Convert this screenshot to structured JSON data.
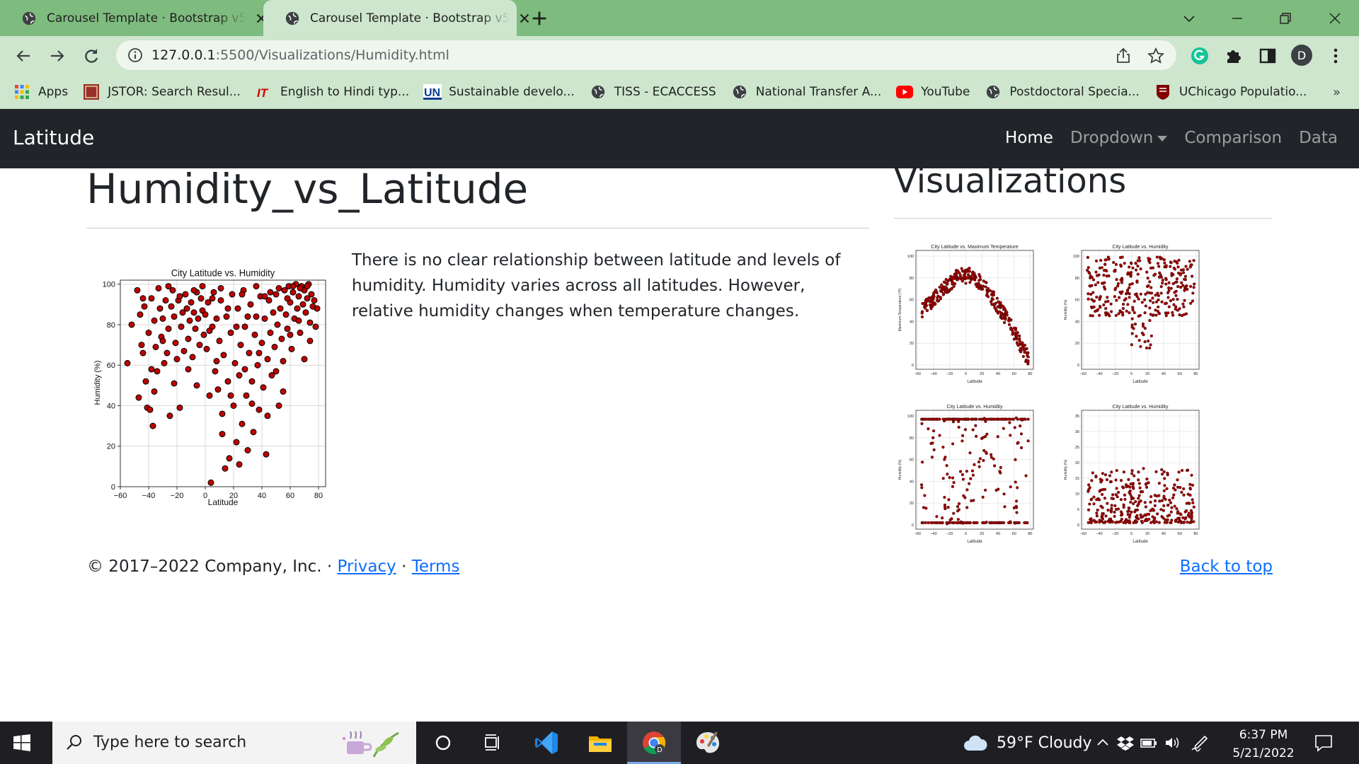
{
  "browser": {
    "tabs": [
      {
        "title": "Carousel Template · Bootstrap v5",
        "active": false
      },
      {
        "title": "Carousel Template · Bootstrap v5",
        "active": true
      }
    ],
    "url_host": "127.0.0.1",
    "url_rest": ":5500/Visualizations/Humidity.html",
    "bookmarks": [
      {
        "label": "Apps",
        "icon": "apps-grid-icon"
      },
      {
        "label": "JSTOR: Search Resul...",
        "icon": "jstor-icon"
      },
      {
        "label": "English to Hindi typ...",
        "icon": "it-logo-icon"
      },
      {
        "label": "Sustainable develo...",
        "icon": "un-logo-icon"
      },
      {
        "label": "TISS - ECACCESS",
        "icon": "globe-icon"
      },
      {
        "label": "National Transfer A...",
        "icon": "globe-icon"
      },
      {
        "label": "YouTube",
        "icon": "youtube-icon"
      },
      {
        "label": "Postdoctoral Specia...",
        "icon": "globe-icon"
      },
      {
        "label": "UChicago Populatio...",
        "icon": "uchicago-icon"
      }
    ],
    "avatar_letter": "D",
    "colors": {
      "frame": "#7ebb7e",
      "toolbar": "#cde6cd"
    }
  },
  "navbar": {
    "brand": "Latitude",
    "links": [
      {
        "label": "Home",
        "active": true
      },
      {
        "label": "Dropdown",
        "active": false,
        "dropdown": true
      },
      {
        "label": "Comparison",
        "active": false
      },
      {
        "label": "Data",
        "active": false
      }
    ]
  },
  "main": {
    "title": "Humidity_vs_Latitude",
    "description": "There is no clear relationship between latitude and levels of humidity. Humidity varies across all latitudes. However, relative humidity changes when temperature changes."
  },
  "sidebar": {
    "title": "Visualizations",
    "thumbnails": [
      {
        "title": "City Latitude vs. Maximum Temperature",
        "ylabel": "Maximum Temperature (°F)",
        "xlabel": "Latitude",
        "yticks": [
          "0",
          "20",
          "40",
          "60",
          "80",
          "100"
        ]
      },
      {
        "title": "City Latitude vs. Humidity",
        "ylabel": "Humidity (%)",
        "xlabel": "Latitude",
        "yticks": [
          "0",
          "20",
          "40",
          "60",
          "80",
          "100"
        ]
      },
      {
        "title": "City Latitude vs. Humidity",
        "ylabel": "Humidity (%)",
        "xlabel": "Latitude",
        "yticks": [
          "0",
          "20",
          "40",
          "60",
          "80",
          "100"
        ]
      },
      {
        "title": "City Latitude vs. Humidity",
        "ylabel": "Humidity (%)",
        "xlabel": "Latitude",
        "yticks": [
          "0",
          "5",
          "10",
          "15",
          "20",
          "25",
          "30",
          "35"
        ]
      }
    ]
  },
  "footer": {
    "copyright": "© 2017–2022 Company, Inc. ·",
    "privacy": "Privacy",
    "separator": "·",
    "terms": "Terms",
    "back_to_top": "Back to top"
  },
  "chart_data": {
    "type": "scatter",
    "title": "City Latitude vs. Humidity",
    "xlabel": "Latitude",
    "ylabel": "Humidity (%)",
    "xlim": [
      -60,
      85
    ],
    "ylim": [
      0,
      102
    ],
    "xticks": [
      -60,
      -40,
      -20,
      0,
      20,
      40,
      60,
      80
    ],
    "yticks": [
      0,
      20,
      40,
      60,
      80,
      100
    ],
    "grid": true,
    "marker_color": "#c00000",
    "series": [
      {
        "points": [
          [
            -55,
            61
          ],
          [
            -52,
            80
          ],
          [
            -48,
            97
          ],
          [
            -47,
            44
          ],
          [
            -46,
            85
          ],
          [
            -45,
            70
          ],
          [
            -44,
            66
          ],
          [
            -43,
            89
          ],
          [
            -42,
            52
          ],
          [
            -41,
            39
          ],
          [
            -40,
            76
          ],
          [
            -39,
            38
          ],
          [
            -38,
            93
          ],
          [
            -37,
            30
          ],
          [
            -36,
            82
          ],
          [
            -35,
            69
          ],
          [
            -34,
            57
          ],
          [
            -33,
            98
          ],
          [
            -32,
            88
          ],
          [
            -31,
            74
          ],
          [
            -30,
            83
          ],
          [
            -29,
            61
          ],
          [
            -28,
            92
          ],
          [
            -27,
            66
          ],
          [
            -26,
            78
          ],
          [
            -25,
            35
          ],
          [
            -24,
            89
          ],
          [
            -23,
            97
          ],
          [
            -22,
            84
          ],
          [
            -21,
            71
          ],
          [
            -20,
            63
          ],
          [
            -19,
            92
          ],
          [
            -18,
            39
          ],
          [
            -17,
            79
          ],
          [
            -16,
            86
          ],
          [
            -15,
            67
          ],
          [
            -14,
            95
          ],
          [
            -13,
            88
          ],
          [
            -12,
            73
          ],
          [
            -11,
            82
          ],
          [
            -10,
            91
          ],
          [
            -9,
            64
          ],
          [
            -8,
            86
          ],
          [
            -7,
            78
          ],
          [
            -6,
            96
          ],
          [
            -5,
            83
          ],
          [
            -4,
            70
          ],
          [
            -3,
            93
          ],
          [
            -2,
            87
          ],
          [
            -1,
            75
          ],
          [
            0,
            85
          ],
          [
            1,
            68
          ],
          [
            2,
            91
          ],
          [
            3,
            45
          ],
          [
            4,
            2
          ],
          [
            5,
            79
          ],
          [
            6,
            96
          ],
          [
            7,
            57
          ],
          [
            8,
            83
          ],
          [
            9,
            48
          ],
          [
            10,
            72
          ],
          [
            11,
            92
          ],
          [
            12,
            36
          ],
          [
            13,
            65
          ],
          [
            14,
            9
          ],
          [
            15,
            84
          ],
          [
            16,
            52
          ],
          [
            17,
            14
          ],
          [
            18,
            76
          ],
          [
            19,
            95
          ],
          [
            20,
            40
          ],
          [
            21,
            61
          ],
          [
            22,
            22
          ],
          [
            23,
            88
          ],
          [
            24,
            55
          ],
          [
            25,
            70
          ],
          [
            26,
            31
          ],
          [
            27,
            97
          ],
          [
            28,
            79
          ],
          [
            29,
            45
          ],
          [
            30,
            18
          ],
          [
            31,
            66
          ],
          [
            32,
            90
          ],
          [
            33,
            52
          ],
          [
            34,
            27
          ],
          [
            35,
            75
          ],
          [
            36,
            84
          ],
          [
            37,
            60
          ],
          [
            38,
            38
          ],
          [
            39,
            94
          ],
          [
            40,
            71
          ],
          [
            41,
            49
          ],
          [
            42,
            83
          ],
          [
            43,
            16
          ],
          [
            44,
            63
          ],
          [
            45,
            92
          ],
          [
            46,
            76
          ],
          [
            47,
            55
          ],
          [
            48,
            86
          ],
          [
            49,
            69
          ],
          [
            50,
            95
          ],
          [
            51,
            80
          ],
          [
            52,
            40
          ],
          [
            53,
            88
          ],
          [
            54,
            73
          ],
          [
            55,
            62
          ],
          [
            56,
            97
          ],
          [
            57,
            85
          ],
          [
            58,
            78
          ],
          [
            59,
            99
          ],
          [
            60,
            91
          ],
          [
            61,
            68
          ],
          [
            62,
            96
          ],
          [
            63,
            83
          ],
          [
            64,
            100
          ],
          [
            65,
            88
          ],
          [
            66,
            94
          ],
          [
            67,
            76
          ],
          [
            68,
            99
          ],
          [
            69,
            90
          ],
          [
            70,
            97
          ],
          [
            71,
            86
          ],
          [
            72,
            93
          ],
          [
            73,
            100
          ],
          [
            74,
            81
          ],
          [
            75,
            95
          ],
          [
            76,
            89
          ],
          [
            77,
            92
          ],
          [
            78,
            79
          ],
          [
            79,
            88
          ],
          [
            -36,
            47
          ],
          [
            -30,
            72
          ],
          [
            -22,
            51
          ],
          [
            -12,
            58
          ],
          [
            -6,
            50
          ],
          [
            3,
            77
          ],
          [
            8,
            62
          ],
          [
            12,
            26
          ],
          [
            18,
            45
          ],
          [
            24,
            11
          ],
          [
            28,
            58
          ],
          [
            33,
            41
          ],
          [
            38,
            66
          ],
          [
            44,
            35
          ],
          [
            50,
            57
          ],
          [
            55,
            47
          ],
          [
            60,
            75
          ],
          [
            66,
            82
          ],
          [
            70,
            63
          ],
          [
            74,
            72
          ],
          [
            -44,
            93
          ],
          [
            -38,
            58
          ],
          [
            -26,
            99
          ],
          [
            -18,
            94
          ],
          [
            -8,
            97
          ],
          [
            -2,
            99
          ],
          [
            5,
            93
          ],
          [
            11,
            98
          ],
          [
            16,
            88
          ],
          [
            22,
            79
          ],
          [
            26,
            95
          ],
          [
            30,
            84
          ],
          [
            36,
            99
          ],
          [
            42,
            94
          ],
          [
            46,
            96
          ],
          [
            52,
            98
          ],
          [
            58,
            93
          ],
          [
            62,
            99
          ],
          [
            67,
            98
          ],
          [
            72,
            99
          ]
        ]
      }
    ]
  },
  "taskbar": {
    "search_placeholder": "Type here to search",
    "weather": "59°F  Cloudy",
    "time": "6:37 PM",
    "date": "5/21/2022"
  }
}
